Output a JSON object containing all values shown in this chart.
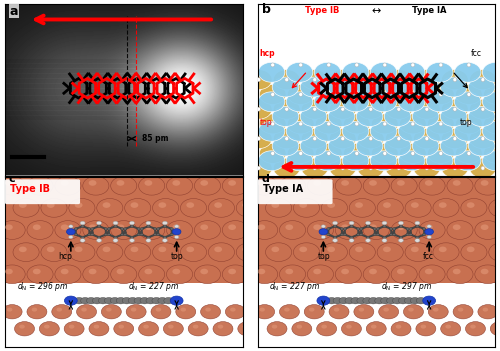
{
  "red": "#ff0000",
  "black": "#000000",
  "copper_light": "#d4957a",
  "copper_dark": "#a05535",
  "copper_mid": "#c07555",
  "blue_light": "#88ccee",
  "gold": "#d4aa44",
  "nitrogen_blue": "#2244cc",
  "gray_mol": "#555555",
  "white_H": "#cccccc",
  "panel_bg_c": "#c87050",
  "dN_c_left": "d_N = 296 pm",
  "dN_c_right": "d_N = 227 pm",
  "dN_d_left": "d_N = 227 pm",
  "dN_d_right": "d_N = 297 pm"
}
